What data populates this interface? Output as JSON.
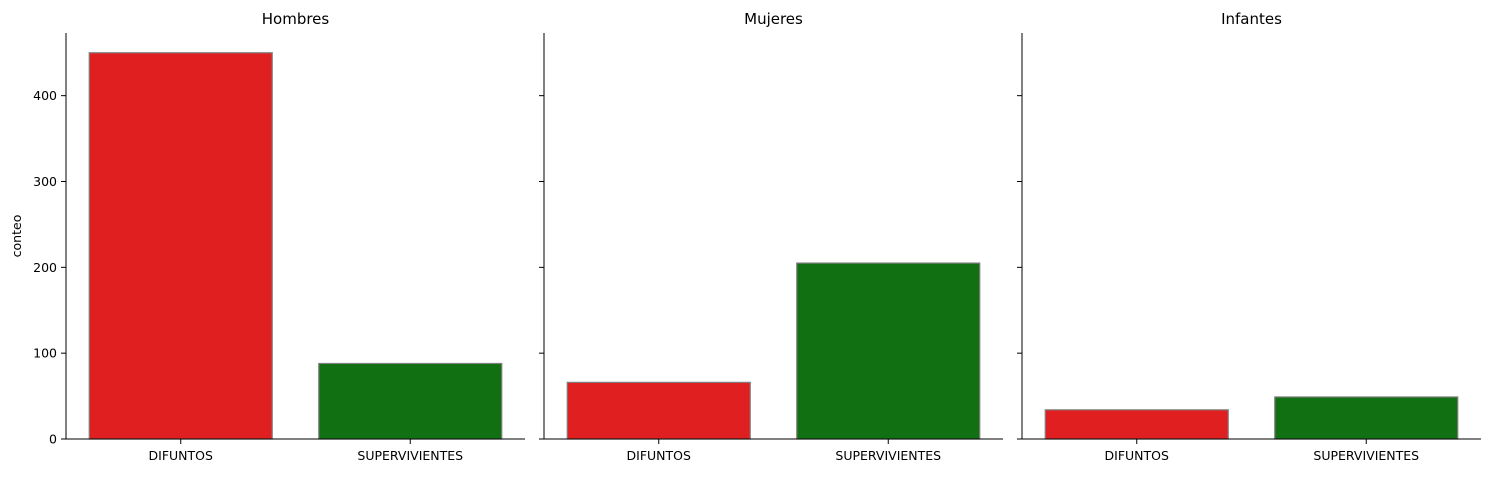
{
  "chart_data": {
    "type": "bar",
    "ylabel": "conteo",
    "ylim": [
      0,
      473
    ],
    "yticks": [
      0,
      100,
      200,
      300,
      400
    ],
    "categories": [
      "DIFUNTOS",
      "SUPERVIVIENTES"
    ],
    "colors": [
      "#e02020",
      "#117011"
    ],
    "bar_edge_color": "#808080",
    "sharey": true,
    "grid": false,
    "panels": [
      {
        "title": "Hombres",
        "values": [
          450,
          88
        ]
      },
      {
        "title": "Mujeres",
        "values": [
          66,
          205
        ]
      },
      {
        "title": "Infantes",
        "values": [
          34,
          49
        ]
      }
    ]
  }
}
